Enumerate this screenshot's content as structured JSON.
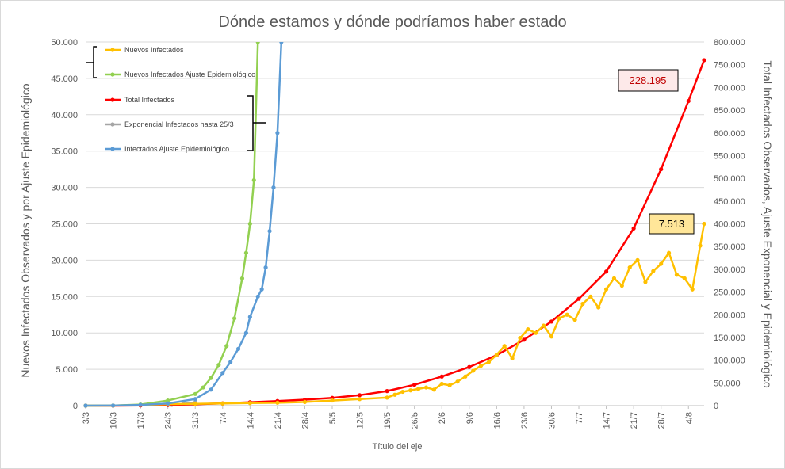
{
  "chart_data": {
    "type": "line",
    "title": "Dónde estamos y dónde podríamos haber estado",
    "xlabel": "Título del eje",
    "ylabel_left": "Nuevos Infectados Observados y por Ajuste Epidemiológico",
    "ylabel_right": "Total Infectados Observados, Ajuste Exponencial y Epidemiológico",
    "x_tick_labels": [
      "3/3",
      "10/3",
      "17/3",
      "24/3",
      "31/3",
      "7/4",
      "14/4",
      "21/4",
      "28/4",
      "5/5",
      "12/5",
      "19/5",
      "26/5",
      "2/6",
      "9/6",
      "16/6",
      "23/6",
      "30/6",
      "7/7",
      "14/7",
      "21/7",
      "28/7",
      "4/8"
    ],
    "y_left_ticks": [
      "0",
      "5.000",
      "10.000",
      "15.000",
      "20.000",
      "25.000",
      "30.000",
      "35.000",
      "40.000",
      "45.000",
      "50.000"
    ],
    "y_right_ticks": [
      "0",
      "50.000",
      "100.000",
      "150.000",
      "200.000",
      "250.000",
      "300.000",
      "350.000",
      "400.000",
      "450.000",
      "500.000",
      "550.000",
      "600.000",
      "650.000",
      "700.000",
      "750.000",
      "800.000"
    ],
    "ylim_left": [
      0,
      50000
    ],
    "ylim_right": [
      0,
      800000
    ],
    "x_start": "3/3",
    "x_end": "8/8",
    "grid": true,
    "legend_position": "top-left",
    "series": [
      {
        "name": "Nuevos Infectados",
        "axis": "left",
        "color": "#ffc000",
        "x": [
          "3/3",
          "10/3",
          "17/3",
          "24/3",
          "31/3",
          "7/4",
          "14/4",
          "21/4",
          "28/4",
          "5/5",
          "12/5",
          "19/5",
          "21/5",
          "23/5",
          "25/5",
          "27/5",
          "29/5",
          "31/5",
          "2/6",
          "4/6",
          "6/6",
          "8/6",
          "10/6",
          "12/6",
          "14/6",
          "16/6",
          "18/6",
          "20/6",
          "22/6",
          "24/6",
          "26/6",
          "28/6",
          "30/6",
          "2/7",
          "4/7",
          "6/7",
          "8/7",
          "10/7",
          "12/7",
          "14/7",
          "16/7",
          "18/7",
          "20/7",
          "22/7",
          "24/7",
          "26/7",
          "28/7",
          "30/7",
          "1/8",
          "3/8",
          "5/8",
          "7/8",
          "8/8"
        ],
        "y": [
          0,
          20,
          100,
          200,
          250,
          300,
          350,
          400,
          500,
          700,
          900,
          1100,
          1500,
          1900,
          2100,
          2300,
          2500,
          2200,
          3000,
          2800,
          3300,
          4000,
          4800,
          5500,
          6000,
          7000,
          8200,
          6500,
          9300,
          10500,
          10000,
          11000,
          9500,
          12000,
          12500,
          11800,
          14000,
          15000,
          13500,
          16000,
          17500,
          16500,
          19000,
          20000,
          17000,
          18500,
          19500,
          21000,
          18000,
          17500,
          16000,
          22000,
          25000
        ]
      },
      {
        "name": "Nuevos Infectados Ajuste Epidemiológico",
        "axis": "left",
        "color": "#92d050",
        "x": [
          "3/3",
          "10/3",
          "17/3",
          "24/3",
          "31/3",
          "2/4",
          "4/4",
          "6/4",
          "8/4",
          "10/4",
          "12/4",
          "13/4",
          "14/4",
          "15/4",
          "16/4"
        ],
        "y": [
          2,
          20,
          150,
          700,
          1600,
          2500,
          3800,
          5600,
          8200,
          12000,
          17500,
          21000,
          25000,
          31000,
          50000
        ]
      },
      {
        "name": "Total Infectados",
        "axis": "right",
        "color": "#ff0000",
        "x": [
          "3/3",
          "10/3",
          "17/3",
          "24/3",
          "31/3",
          "7/4",
          "14/4",
          "21/4",
          "28/4",
          "5/5",
          "12/5",
          "19/5",
          "26/5",
          "2/6",
          "9/6",
          "16/6",
          "23/6",
          "30/6",
          "7/7",
          "14/7",
          "21/7",
          "28/7",
          "4/8",
          "8/8"
        ],
        "y": [
          0,
          0,
          500,
          1500,
          3000,
          5000,
          7500,
          10000,
          13000,
          17000,
          23000,
          32000,
          46000,
          64000,
          85000,
          111000,
          145000,
          185000,
          235000,
          295000,
          390000,
          520000,
          670000,
          760000
        ]
      },
      {
        "name": "Exponencial Infectados hasta 25/3",
        "axis": "right",
        "color": "#a5a5a5",
        "x": [
          "3/3",
          "10/3",
          "17/3",
          "24/3",
          "25/3",
          "28/3",
          "31/3"
        ],
        "y": [
          0,
          100,
          400,
          1500,
          2000,
          4000,
          7000
        ]
      },
      {
        "name": "Infectados Ajuste Epidemiológico",
        "axis": "left",
        "color": "#5b9bd5",
        "x": [
          "3/3",
          "10/3",
          "17/3",
          "24/3",
          "31/3",
          "4/4",
          "7/4",
          "9/4",
          "11/4",
          "13/4",
          "14/4",
          "16/4",
          "17/4",
          "18/4",
          "19/4",
          "20/4",
          "21/4",
          "22/4"
        ],
        "y": [
          0,
          20,
          100,
          300,
          900,
          2200,
          4500,
          6000,
          7800,
          10000,
          12200,
          15000,
          16000,
          19000,
          24000,
          30000,
          37500,
          50000
        ]
      }
    ],
    "annotations": [
      {
        "text": "228.195",
        "color": "#c00000",
        "fill": "#fde9e9"
      },
      {
        "text": "7.513",
        "color": "#000000",
        "fill": "#ffe699"
      }
    ]
  }
}
